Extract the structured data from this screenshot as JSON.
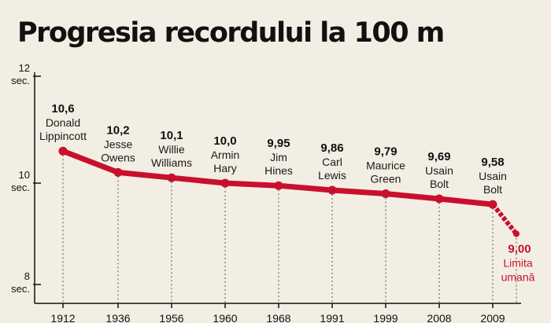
{
  "chart_data": {
    "type": "line",
    "title": "Progresia recordului la 100 m",
    "ylim": [
      8,
      12
    ],
    "y_ticks": [
      {
        "value": 12,
        "label": "12",
        "unit": "sec."
      },
      {
        "value": 10,
        "label": "10",
        "unit": "sec."
      },
      {
        "value": 8,
        "label": "8",
        "unit": "sec."
      }
    ],
    "categories": [
      "1912",
      "1936",
      "1956",
      "1960",
      "1968",
      "1991",
      "1999",
      "2008",
      "2009"
    ],
    "points": [
      {
        "year": "1912",
        "value": 10.6,
        "label": "10,6",
        "name": "Donald\nLippincott"
      },
      {
        "year": "1936",
        "value": 10.2,
        "label": "10,2",
        "name": "Jesse\nOwens"
      },
      {
        "year": "1956",
        "value": 10.1,
        "label": "10,1",
        "name": "Willie\nWilliams"
      },
      {
        "year": "1960",
        "value": 10.0,
        "label": "10,0",
        "name": "Armin\nHary"
      },
      {
        "year": "1968",
        "value": 9.95,
        "label": "9,95",
        "name": "Jim\nHines"
      },
      {
        "year": "1991",
        "value": 9.86,
        "label": "9,86",
        "name": "Carl\nLewis"
      },
      {
        "year": "1999",
        "value": 9.79,
        "label": "9,79",
        "name": "Maurice\nGreen"
      },
      {
        "year": "2008",
        "value": 9.69,
        "label": "9,69",
        "name": "Usain\nBolt"
      },
      {
        "year": "2009",
        "value": 9.58,
        "label": "9,58",
        "name": "Usain\nBolt"
      }
    ],
    "limit": {
      "value": 9.0,
      "label": "9,00",
      "name": "Limita\numană"
    },
    "colors": {
      "line": "#c8102e",
      "background": "#f3eee3",
      "axis": "#111111",
      "guide": "#555555"
    }
  }
}
